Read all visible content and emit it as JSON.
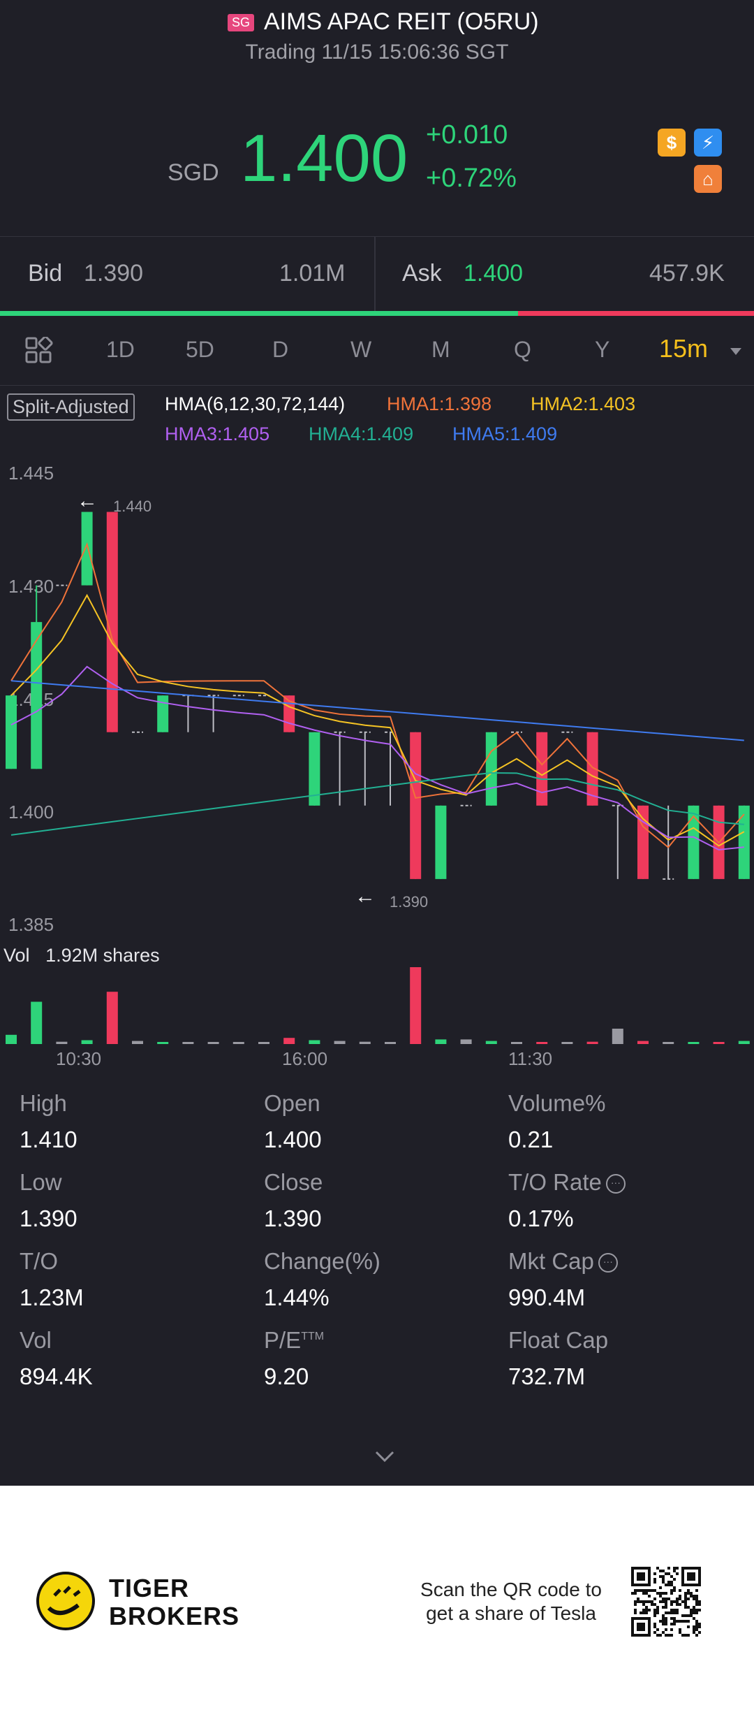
{
  "header": {
    "market_flag": "SG",
    "title": "AIMS APAC REIT (O5RU)",
    "subtitle": "Trading 11/15 15:06:36 SGT"
  },
  "quote": {
    "currency": "SGD",
    "price": "1.400",
    "change": "+0.010",
    "change_pct": "+0.72%"
  },
  "badges": [
    "dollar-icon",
    "lightning-icon",
    "reit-icon"
  ],
  "bidask": {
    "bid_label": "Bid",
    "bid_price": "1.390",
    "bid_size": "1.01M",
    "ask_label": "Ask",
    "ask_price": "1.400",
    "ask_size": "457.9K",
    "bid_share": 0.687
  },
  "periods": {
    "tabs": [
      "1D",
      "5D",
      "D",
      "W",
      "M",
      "Q",
      "Y"
    ],
    "active": "15m"
  },
  "indicators": {
    "split": "Split-Adjusted",
    "hma": "HMA(6,12,30,72,144)",
    "hma1": "HMA1:1.398",
    "hma2": "HMA2:1.403",
    "hma3": "HMA3:1.405",
    "hma4": "HMA4:1.409",
    "hma5": "HMA5:1.409"
  },
  "colors": {
    "up": "#2ed47a",
    "down": "#ef3a5c",
    "hma1": "#f0733a",
    "hma2": "#f5c324",
    "hma3": "#b060f0",
    "hma4": "#22b093",
    "hma5": "#3f7bf0",
    "accent": "#f5bf1c"
  },
  "chart_data": {
    "type": "candlestick",
    "y_ticks": [
      "1.445",
      "1.430",
      "1.415",
      "1.400",
      "1.385"
    ],
    "ylim": [
      1.385,
      1.445
    ],
    "x_ticks": [
      "10:30",
      "16:00",
      "11:30"
    ],
    "high_marker": "1.440",
    "low_marker": "1.390",
    "volume_label": "Vol",
    "volume_max": "1.92M shares",
    "candles": [
      {
        "o": 1.405,
        "c": 1.415,
        "h": 1.415,
        "l": 1.405
      },
      {
        "o": 1.405,
        "c": 1.425,
        "h": 1.43,
        "l": 1.405
      },
      {
        "o": 1.43,
        "c": 1.43,
        "h": 1.43,
        "l": 1.43
      },
      {
        "o": 1.43,
        "c": 1.44,
        "h": 1.44,
        "l": 1.43
      },
      {
        "o": 1.44,
        "c": 1.41,
        "h": 1.44,
        "l": 1.41
      },
      {
        "o": 1.41,
        "c": 1.41,
        "h": 1.41,
        "l": 1.41
      },
      {
        "o": 1.41,
        "c": 1.415,
        "h": 1.415,
        "l": 1.41
      },
      {
        "o": 1.415,
        "c": 1.415,
        "h": 1.415,
        "l": 1.41
      },
      {
        "o": 1.415,
        "c": 1.415,
        "h": 1.415,
        "l": 1.41
      },
      {
        "o": 1.415,
        "c": 1.415,
        "h": 1.415,
        "l": 1.415
      },
      {
        "o": 1.415,
        "c": 1.415,
        "h": 1.415,
        "l": 1.415
      },
      {
        "o": 1.415,
        "c": 1.41,
        "h": 1.415,
        "l": 1.41
      },
      {
        "o": 1.4,
        "c": 1.41,
        "h": 1.41,
        "l": 1.4
      },
      {
        "o": 1.41,
        "c": 1.41,
        "h": 1.41,
        "l": 1.4
      },
      {
        "o": 1.41,
        "c": 1.41,
        "h": 1.41,
        "l": 1.4
      },
      {
        "o": 1.41,
        "c": 1.41,
        "h": 1.41,
        "l": 1.4
      },
      {
        "o": 1.41,
        "c": 1.39,
        "h": 1.41,
        "l": 1.39
      },
      {
        "o": 1.39,
        "c": 1.4,
        "h": 1.4,
        "l": 1.39
      },
      {
        "o": 1.4,
        "c": 1.4,
        "h": 1.4,
        "l": 1.4
      },
      {
        "o": 1.4,
        "c": 1.41,
        "h": 1.41,
        "l": 1.4
      },
      {
        "o": 1.41,
        "c": 1.41,
        "h": 1.41,
        "l": 1.41
      },
      {
        "o": 1.41,
        "c": 1.4,
        "h": 1.41,
        "l": 1.4
      },
      {
        "o": 1.41,
        "c": 1.41,
        "h": 1.41,
        "l": 1.41
      },
      {
        "o": 1.41,
        "c": 1.4,
        "h": 1.41,
        "l": 1.4
      },
      {
        "o": 1.4,
        "c": 1.4,
        "h": 1.4,
        "l": 1.39
      },
      {
        "o": 1.4,
        "c": 1.39,
        "h": 1.4,
        "l": 1.39
      },
      {
        "o": 1.39,
        "c": 1.39,
        "h": 1.4,
        "l": 1.39
      },
      {
        "o": 1.39,
        "c": 1.4,
        "h": 1.4,
        "l": 1.39
      },
      {
        "o": 1.4,
        "c": 1.39,
        "h": 1.4,
        "l": 1.39
      },
      {
        "o": 1.39,
        "c": 1.4,
        "h": 1.4,
        "l": 1.39
      }
    ],
    "volumes": [
      0.12,
      0.55,
      0.03,
      0.05,
      0.68,
      0.04,
      0.02,
      0.01,
      0.01,
      0.02,
      0.02,
      0.08,
      0.05,
      0.04,
      0.03,
      0.02,
      1.0,
      0.06,
      0.06,
      0.04,
      0.02,
      0.01,
      0.01,
      0.03,
      0.2,
      0.04,
      0.02,
      0.02,
      0.01,
      0.04
    ]
  },
  "stats": [
    {
      "label": "High",
      "value": "1.410"
    },
    {
      "label": "Open",
      "value": "1.400"
    },
    {
      "label": "Volume%",
      "value": "0.21"
    },
    {
      "label": "Low",
      "value": "1.390"
    },
    {
      "label": "Close",
      "value": "1.390"
    },
    {
      "label": "T/O Rate",
      "value": "0.17%"
    },
    {
      "label": "T/O",
      "value": "1.23M"
    },
    {
      "label": "Change(%)",
      "value": "1.44%"
    },
    {
      "label": "Mkt Cap",
      "value": "990.4M"
    },
    {
      "label": "Vol",
      "value": "894.4K"
    },
    {
      "label": "P/E",
      "value": "9.20",
      "sup": "TTM"
    },
    {
      "label": "Float Cap",
      "value": "732.7M"
    }
  ],
  "footer": {
    "brand_line1": "TIGER",
    "brand_line2": "BROKERS",
    "qr_text": "Scan the QR code to get a share of Tesla"
  }
}
